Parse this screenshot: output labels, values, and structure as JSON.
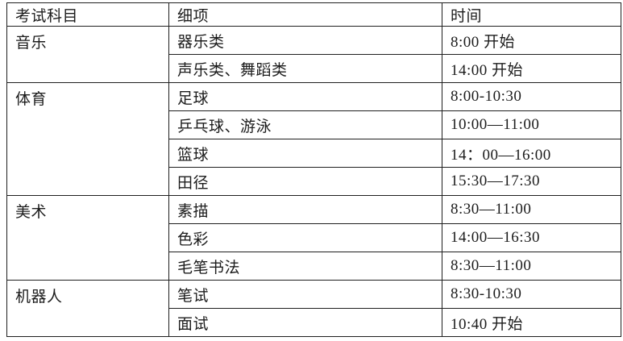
{
  "table": {
    "headers": [
      "考试科目",
      "细项",
      "时间"
    ],
    "sections": [
      {
        "subject": "音乐",
        "rows": [
          [
            "器乐类",
            "8:00 开始"
          ],
          [
            "声乐类、舞蹈类",
            "14:00 开始"
          ]
        ]
      },
      {
        "subject": "体育",
        "rows": [
          [
            "足球",
            "8:00-10:30"
          ],
          [
            "乒乓球、游泳",
            "10:00—11:00"
          ],
          [
            "篮球",
            "14：00—16:00"
          ],
          [
            "田径",
            "15:30—17:30"
          ]
        ]
      },
      {
        "subject": "美术",
        "rows": [
          [
            "素描",
            "8:30—11:00"
          ],
          [
            "色彩",
            "14:00—16:30"
          ],
          [
            "毛笔书法",
            "8:30—11:00"
          ]
        ]
      },
      {
        "subject": "机器人",
        "rows": [
          [
            "笔试",
            "8:30-10:30"
          ],
          [
            "面试",
            "10:40 开始"
          ]
        ]
      }
    ]
  }
}
